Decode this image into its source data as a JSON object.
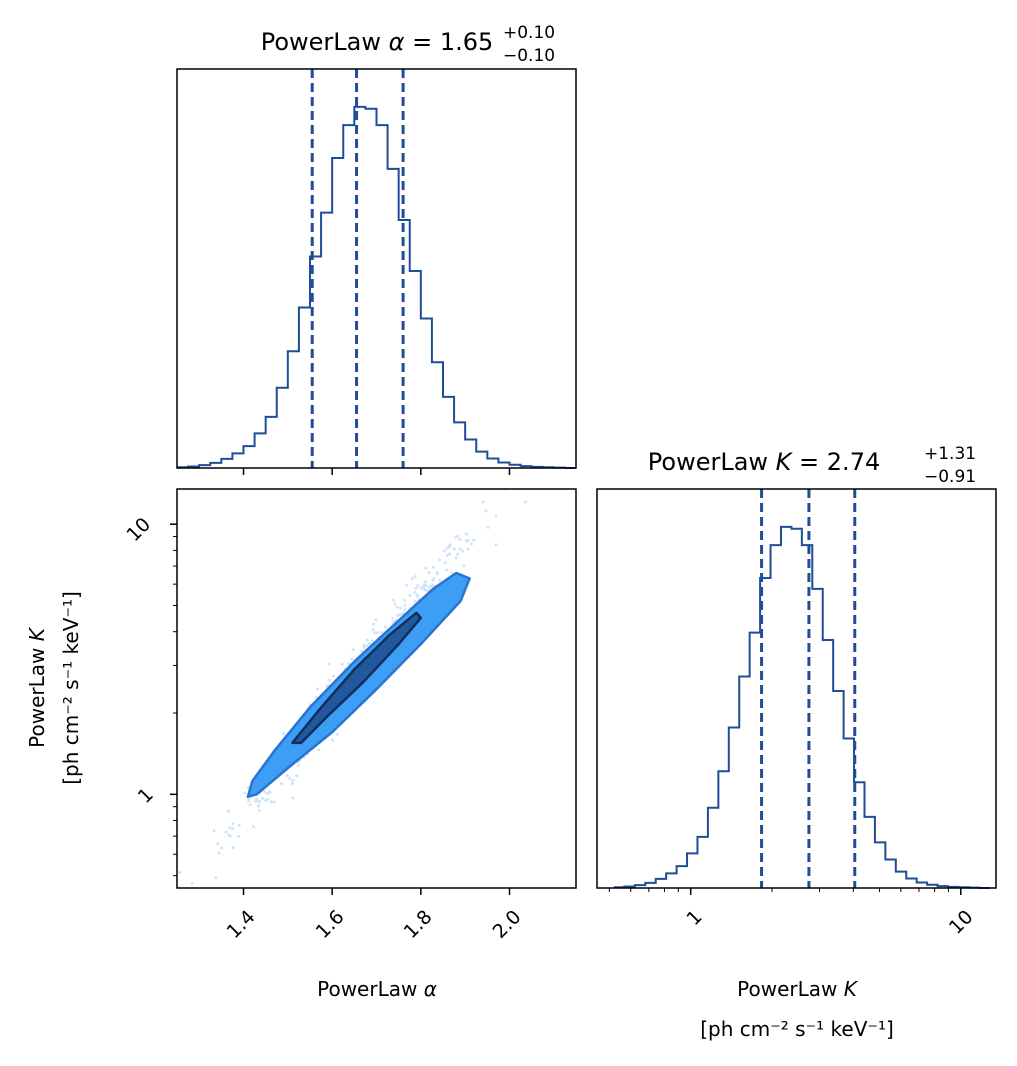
{
  "chart_data": {
    "type": "corner",
    "colors": {
      "line": "#1f4e96",
      "contour_inner": "#22599c",
      "contour_outer": "#3d9ef5",
      "scatter": "#cfe3fb",
      "axis": "#000000"
    },
    "panels": {
      "alpha_hist": {
        "title_prefix": "PowerLaw ",
        "title_symbol": "α",
        "title_eq": " = 1.65",
        "title_upper": "+0.10",
        "title_lower": "−0.10",
        "quantiles": [
          1.555,
          1.655,
          1.76
        ],
        "xlim": [
          1.25,
          2.15
        ],
        "bins": [
          1.25,
          1.275,
          1.3,
          1.325,
          1.35,
          1.375,
          1.4,
          1.425,
          1.45,
          1.475,
          1.5,
          1.525,
          1.55,
          1.575,
          1.6,
          1.625,
          1.65,
          1.675,
          1.7,
          1.725,
          1.75,
          1.775,
          1.8,
          1.825,
          1.85,
          1.875,
          1.9,
          1.925,
          1.95,
          1.975,
          2.0,
          2.025,
          2.05,
          2.075,
          2.1,
          2.125,
          2.15
        ],
        "counts": [
          0.002,
          0.004,
          0.008,
          0.014,
          0.025,
          0.04,
          0.06,
          0.095,
          0.14,
          0.22,
          0.32,
          0.44,
          0.58,
          0.7,
          0.85,
          0.94,
          0.99,
          0.985,
          0.94,
          0.82,
          0.68,
          0.54,
          0.41,
          0.29,
          0.195,
          0.125,
          0.078,
          0.045,
          0.026,
          0.015,
          0.009,
          0.005,
          0.003,
          0.002,
          0.001,
          0.0
        ]
      },
      "joint": {
        "xlabel_prefix": "PowerLaw ",
        "xlabel_symbol": "α",
        "ylabel_line1_prefix": "PowerLaw ",
        "ylabel_line1_symbol": "K",
        "ylabel_line2": "[ph cm⁻² s⁻¹ keV⁻¹]",
        "xlim": [
          1.25,
          2.15
        ],
        "ylim_log": [
          0.45,
          13.5
        ],
        "xticks": [
          1.4,
          1.6,
          1.8,
          2.0
        ],
        "xtick_labels": [
          "1.4",
          "1.6",
          "1.8",
          "2.0"
        ],
        "yticks": [
          1,
          10
        ],
        "ytick_labels": [
          "1",
          "10"
        ],
        "contour_outer": [
          [
            1.41,
            0.98
          ],
          [
            1.42,
            1.12
          ],
          [
            1.47,
            1.45
          ],
          [
            1.55,
            2.1
          ],
          [
            1.65,
            3.1
          ],
          [
            1.75,
            4.4
          ],
          [
            1.83,
            5.8
          ],
          [
            1.88,
            6.6
          ],
          [
            1.91,
            6.3
          ],
          [
            1.89,
            5.2
          ],
          [
            1.8,
            3.6
          ],
          [
            1.7,
            2.45
          ],
          [
            1.6,
            1.7
          ],
          [
            1.5,
            1.25
          ],
          [
            1.43,
            1.0
          ]
        ],
        "contour_inner": [
          [
            1.51,
            1.55
          ],
          [
            1.57,
            2.05
          ],
          [
            1.65,
            2.9
          ],
          [
            1.73,
            3.9
          ],
          [
            1.79,
            4.7
          ],
          [
            1.8,
            4.5
          ],
          [
            1.75,
            3.6
          ],
          [
            1.67,
            2.6
          ],
          [
            1.59,
            1.95
          ],
          [
            1.53,
            1.55
          ]
        ]
      },
      "k_hist": {
        "title_prefix": "PowerLaw ",
        "title_symbol": "K",
        "title_eq": " = 2.74",
        "title_upper": "+1.31",
        "title_lower": "−0.91",
        "xlabel_line1_prefix": "PowerLaw ",
        "xlabel_line1_symbol": "K",
        "xlabel_line2": "[ph cm⁻² s⁻¹ keV⁻¹]",
        "xlim_log": [
          0.45,
          13.5
        ],
        "xticks": [
          1,
          10
        ],
        "xtick_labels": [
          "1",
          "10"
        ],
        "quantiles": [
          1.83,
          2.74,
          4.05
        ],
        "counts": [
          0.002,
          0.004,
          0.008,
          0.014,
          0.025,
          0.04,
          0.06,
          0.095,
          0.14,
          0.22,
          0.32,
          0.44,
          0.58,
          0.7,
          0.85,
          0.94,
          0.99,
          0.985,
          0.94,
          0.82,
          0.68,
          0.54,
          0.41,
          0.29,
          0.195,
          0.125,
          0.078,
          0.045,
          0.026,
          0.015,
          0.009,
          0.005,
          0.003,
          0.002,
          0.001,
          0.0
        ]
      }
    }
  }
}
